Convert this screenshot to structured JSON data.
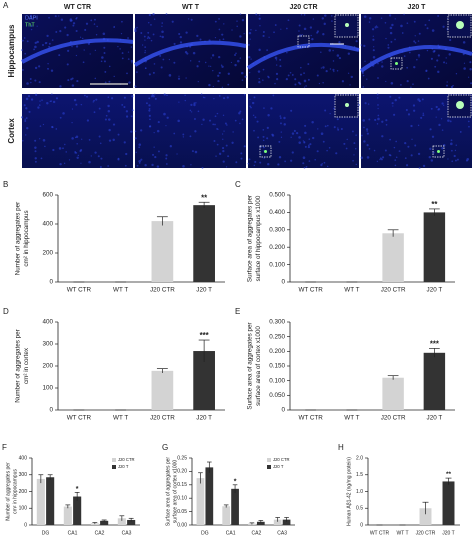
{
  "panel_a": {
    "label": "A",
    "columns": [
      "WT CTR",
      "WT T",
      "J20 CTR",
      "J20 T"
    ],
    "rows": [
      "Hippocampus",
      "Cortex"
    ],
    "legend": [
      "DAPI",
      "ThT"
    ]
  },
  "chart_data": [
    {
      "type": "bar",
      "label": "B",
      "ylabel": [
        "Number of aggregates per",
        "cm² in hippocampus"
      ],
      "categories": [
        "WT CTR",
        "WT T",
        "J20 CTR",
        "J20 T"
      ],
      "values": [
        0,
        0,
        420,
        530
      ],
      "errors": [
        0,
        0,
        30,
        20
      ],
      "colors": [
        "#d3d3d3",
        "#d3d3d3",
        "#d3d3d3",
        "#333333"
      ],
      "significance": [
        null,
        null,
        null,
        "**"
      ],
      "ylim": [
        0,
        600
      ],
      "yticks": [
        0,
        200,
        400,
        600
      ]
    },
    {
      "type": "bar",
      "label": "C",
      "ylabel": [
        "Surface area of aggregates per",
        "surface of hippocampus x1000"
      ],
      "categories": [
        "WT CTR",
        "WT T",
        "J20 CTR",
        "J20 T"
      ],
      "values": [
        0,
        0,
        0.28,
        0.4
      ],
      "errors": [
        0,
        0,
        0.02,
        0.02
      ],
      "colors": [
        "#d3d3d3",
        "#d3d3d3",
        "#d3d3d3",
        "#333333"
      ],
      "significance": [
        null,
        null,
        null,
        "**"
      ],
      "ylim": [
        0,
        0.5
      ],
      "yticks": [
        0,
        {
          "value": 0.1,
          "label": "0.100"
        },
        {
          "value": 0.2,
          "label": "0.200"
        },
        {
          "value": 0.3,
          "label": "0.300"
        },
        {
          "value": 0.4,
          "label": "0.400"
        },
        {
          "value": 0.5,
          "label": "0.500"
        }
      ]
    },
    {
      "type": "bar",
      "label": "D",
      "ylabel": [
        "Number of aggregates per",
        "cm² in cortex"
      ],
      "categories": [
        "WT CTR",
        "WT T",
        "J20 CTR",
        "J20 T"
      ],
      "values": [
        0,
        0,
        178,
        268
      ],
      "errors": [
        0,
        0,
        10,
        50
      ],
      "colors": [
        "#d3d3d3",
        "#d3d3d3",
        "#d3d3d3",
        "#333333"
      ],
      "significance": [
        null,
        null,
        null,
        "***"
      ],
      "ylim": [
        0,
        400
      ],
      "yticks": [
        0,
        100,
        200,
        300,
        400
      ]
    },
    {
      "type": "bar",
      "label": "E",
      "ylabel": [
        "Surface area of aggregates per",
        "surface area of cortex x1000"
      ],
      "categories": [
        "WT CTR",
        "WT T",
        "J20 CTR",
        "J20 T"
      ],
      "values": [
        0,
        0,
        0.11,
        0.195
      ],
      "errors": [
        0,
        0,
        0.007,
        0.015
      ],
      "colors": [
        "#d3d3d3",
        "#d3d3d3",
        "#d3d3d3",
        "#333333"
      ],
      "significance": [
        null,
        null,
        null,
        "***"
      ],
      "ylim": [
        0,
        0.3
      ],
      "yticks": [
        0,
        {
          "value": 0.05,
          "label": "0.050"
        },
        {
          "value": 0.1,
          "label": "0.100"
        },
        {
          "value": 0.15,
          "label": "0.150"
        },
        {
          "value": 0.2,
          "label": "0.200"
        },
        {
          "value": 0.25,
          "label": "0.250"
        },
        {
          "value": 0.3,
          "label": "0.300"
        }
      ]
    },
    {
      "type": "grouped_bar",
      "label": "F",
      "ylabel": [
        "Number of aggregates per",
        "cm² in hippocampus"
      ],
      "categories": [
        "DG",
        "CA1",
        "CA2",
        "CA3"
      ],
      "series": [
        {
          "name": "J20 CTR",
          "color": "#d3d3d3",
          "values": [
            275,
            110,
            10,
            40
          ],
          "errors": [
            25,
            10,
            5,
            15
          ],
          "significance": [
            null,
            null,
            null,
            null
          ]
        },
        {
          "name": "J20 T",
          "color": "#333333",
          "values": [
            285,
            170,
            25,
            30
          ],
          "errors": [
            15,
            25,
            5,
            10
          ],
          "significance": [
            null,
            "*",
            null,
            null
          ]
        }
      ],
      "ylim": [
        0,
        400
      ],
      "yticks": [
        0,
        100,
        200,
        300,
        400
      ]
    },
    {
      "type": "grouped_bar",
      "label": "G",
      "ylabel": [
        "Surface area of aggregates per",
        "surface area of cortex x1000"
      ],
      "categories": [
        "DG",
        "CA1",
        "CA2",
        "CA3"
      ],
      "series": [
        {
          "name": "J20 CTR",
          "color": "#d3d3d3",
          "values": [
            0.175,
            0.07,
            0.005,
            0.02
          ],
          "errors": [
            0.02,
            0.005,
            0.003,
            0.008
          ],
          "significance": [
            null,
            null,
            null,
            null
          ]
        },
        {
          "name": "J20 T",
          "color": "#333333",
          "values": [
            0.215,
            0.135,
            0.012,
            0.02
          ],
          "errors": [
            0.02,
            0.015,
            0.005,
            0.008
          ],
          "significance": [
            null,
            "*",
            null,
            null
          ]
        }
      ],
      "ylim": [
        0,
        0.25
      ],
      "yticks": [
        {
          "value": 0,
          "label": "0.00"
        },
        {
          "value": 0.05,
          "label": "0.05"
        },
        {
          "value": 0.1,
          "label": "0.10"
        },
        {
          "value": 0.15,
          "label": "0.15"
        },
        {
          "value": 0.2,
          "label": "0.20"
        },
        {
          "value": 0.25,
          "label": "0.25"
        }
      ]
    },
    {
      "type": "bar",
      "label": "H",
      "ylabel": [
        "Human Aβ1-42 (ng/mg protein)"
      ],
      "categories": [
        "WT CTR",
        "WT T",
        "J20 CTR",
        "J20 T"
      ],
      "values": [
        0,
        0,
        0.5,
        1.3
      ],
      "errors": [
        0,
        0,
        0.18,
        0.1
      ],
      "colors": [
        "#d3d3d3",
        "#d3d3d3",
        "#d3d3d3",
        "#333333"
      ],
      "significance": [
        null,
        null,
        null,
        "**"
      ],
      "ylim": [
        0,
        2
      ],
      "yticks": [
        0,
        {
          "value": 0.5,
          "label": "0.5"
        },
        {
          "value": 1,
          "label": "1.0"
        },
        {
          "value": 1.5,
          "label": "1.5"
        },
        {
          "value": 2,
          "label": "2.0"
        }
      ]
    }
  ]
}
